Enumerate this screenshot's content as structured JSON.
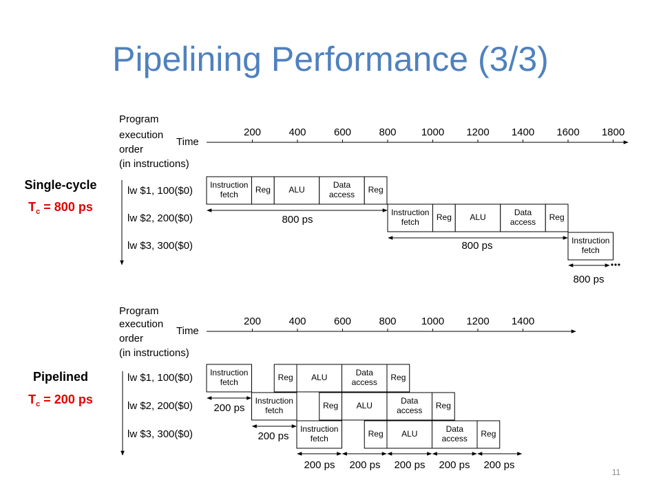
{
  "title": "Pipelining Performance (3/3)",
  "page_number": "11",
  "sections": [
    {
      "label": "Single-cycle",
      "cycle_time": {
        "symbol": "T",
        "subscript": "c",
        "rest": " = 800 ps"
      },
      "order_label": [
        "Program",
        "execution",
        "order",
        "(in instructions)"
      ],
      "time_label": "Time",
      "ticks": [
        200,
        400,
        600,
        800,
        1000,
        1200,
        1400,
        1600,
        1800
      ],
      "instructions": [
        "lw  $1, 100($0)",
        "lw  $2, 200($0)",
        "lw  $3, 300($0)"
      ],
      "stages": [
        [
          [
            "Instruction",
            "fetch"
          ],
          [
            "Reg"
          ],
          [
            "ALU"
          ],
          [
            "Data",
            "access"
          ],
          [
            "Reg"
          ]
        ],
        [
          [
            "Instruction",
            "fetch"
          ],
          [
            "Reg"
          ],
          [
            "ALU"
          ],
          [
            "Data",
            "access"
          ],
          [
            "Reg"
          ]
        ],
        [
          [
            "Instruction",
            "fetch"
          ]
        ]
      ],
      "durations": [
        "800 ps",
        "800 ps",
        "800 ps"
      ]
    },
    {
      "label": "Pipelined",
      "cycle_time": {
        "symbol": "T",
        "subscript": "c",
        "rest": " = 200 ps"
      },
      "order_label": [
        "Program",
        "execution",
        "order",
        "(in instructions)"
      ],
      "time_label": "Time",
      "ticks": [
        200,
        400,
        600,
        800,
        1000,
        1200,
        1400
      ],
      "instructions": [
        "lw  $1, 100($0)",
        "lw  $2, 200($0)",
        "lw  $3, 300($0)"
      ],
      "stages": [
        [
          [
            "Instruction",
            "fetch"
          ],
          [
            "Reg"
          ],
          [
            "ALU"
          ],
          [
            "Data",
            "access"
          ],
          [
            "Reg"
          ]
        ],
        [
          [
            "Instruction",
            "fetch"
          ],
          [
            "Reg"
          ],
          [
            "ALU"
          ],
          [
            "Data",
            "access"
          ],
          [
            "Reg"
          ]
        ],
        [
          [
            "Instruction",
            "fetch"
          ],
          [
            "Reg"
          ],
          [
            "ALU"
          ],
          [
            "Data",
            "access"
          ],
          [
            "Reg"
          ]
        ]
      ],
      "durations": [
        "200 ps",
        "200 ps",
        "200 ps",
        "200 ps",
        "200 ps",
        "200 ps",
        "200 ps"
      ]
    }
  ]
}
